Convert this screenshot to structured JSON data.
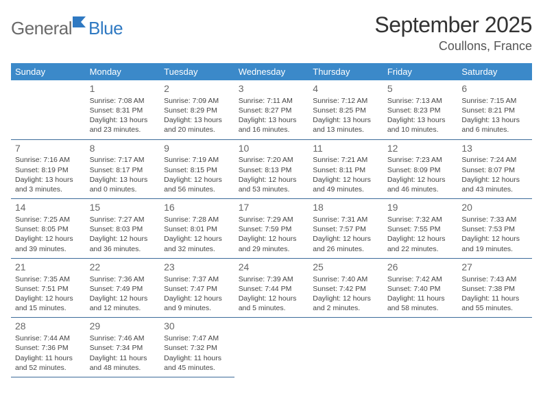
{
  "logo": {
    "general": "General",
    "blue": "Blue"
  },
  "title": "September 2025",
  "location": "Coullons, France",
  "colors": {
    "header_bg": "#3b89c9",
    "header_text": "#ffffff",
    "border": "#3b6a99",
    "logo_gray": "#6a6a6a",
    "logo_blue": "#2f79c2"
  },
  "dayNames": [
    "Sunday",
    "Monday",
    "Tuesday",
    "Wednesday",
    "Thursday",
    "Friday",
    "Saturday"
  ],
  "weeks": [
    [
      null,
      {
        "n": "1",
        "sr": "Sunrise: 7:08 AM",
        "ss": "Sunset: 8:31 PM",
        "dl": "Daylight: 13 hours and 23 minutes."
      },
      {
        "n": "2",
        "sr": "Sunrise: 7:09 AM",
        "ss": "Sunset: 8:29 PM",
        "dl": "Daylight: 13 hours and 20 minutes."
      },
      {
        "n": "3",
        "sr": "Sunrise: 7:11 AM",
        "ss": "Sunset: 8:27 PM",
        "dl": "Daylight: 13 hours and 16 minutes."
      },
      {
        "n": "4",
        "sr": "Sunrise: 7:12 AM",
        "ss": "Sunset: 8:25 PM",
        "dl": "Daylight: 13 hours and 13 minutes."
      },
      {
        "n": "5",
        "sr": "Sunrise: 7:13 AM",
        "ss": "Sunset: 8:23 PM",
        "dl": "Daylight: 13 hours and 10 minutes."
      },
      {
        "n": "6",
        "sr": "Sunrise: 7:15 AM",
        "ss": "Sunset: 8:21 PM",
        "dl": "Daylight: 13 hours and 6 minutes."
      }
    ],
    [
      {
        "n": "7",
        "sr": "Sunrise: 7:16 AM",
        "ss": "Sunset: 8:19 PM",
        "dl": "Daylight: 13 hours and 3 minutes."
      },
      {
        "n": "8",
        "sr": "Sunrise: 7:17 AM",
        "ss": "Sunset: 8:17 PM",
        "dl": "Daylight: 13 hours and 0 minutes."
      },
      {
        "n": "9",
        "sr": "Sunrise: 7:19 AM",
        "ss": "Sunset: 8:15 PM",
        "dl": "Daylight: 12 hours and 56 minutes."
      },
      {
        "n": "10",
        "sr": "Sunrise: 7:20 AM",
        "ss": "Sunset: 8:13 PM",
        "dl": "Daylight: 12 hours and 53 minutes."
      },
      {
        "n": "11",
        "sr": "Sunrise: 7:21 AM",
        "ss": "Sunset: 8:11 PM",
        "dl": "Daylight: 12 hours and 49 minutes."
      },
      {
        "n": "12",
        "sr": "Sunrise: 7:23 AM",
        "ss": "Sunset: 8:09 PM",
        "dl": "Daylight: 12 hours and 46 minutes."
      },
      {
        "n": "13",
        "sr": "Sunrise: 7:24 AM",
        "ss": "Sunset: 8:07 PM",
        "dl": "Daylight: 12 hours and 43 minutes."
      }
    ],
    [
      {
        "n": "14",
        "sr": "Sunrise: 7:25 AM",
        "ss": "Sunset: 8:05 PM",
        "dl": "Daylight: 12 hours and 39 minutes."
      },
      {
        "n": "15",
        "sr": "Sunrise: 7:27 AM",
        "ss": "Sunset: 8:03 PM",
        "dl": "Daylight: 12 hours and 36 minutes."
      },
      {
        "n": "16",
        "sr": "Sunrise: 7:28 AM",
        "ss": "Sunset: 8:01 PM",
        "dl": "Daylight: 12 hours and 32 minutes."
      },
      {
        "n": "17",
        "sr": "Sunrise: 7:29 AM",
        "ss": "Sunset: 7:59 PM",
        "dl": "Daylight: 12 hours and 29 minutes."
      },
      {
        "n": "18",
        "sr": "Sunrise: 7:31 AM",
        "ss": "Sunset: 7:57 PM",
        "dl": "Daylight: 12 hours and 26 minutes."
      },
      {
        "n": "19",
        "sr": "Sunrise: 7:32 AM",
        "ss": "Sunset: 7:55 PM",
        "dl": "Daylight: 12 hours and 22 minutes."
      },
      {
        "n": "20",
        "sr": "Sunrise: 7:33 AM",
        "ss": "Sunset: 7:53 PM",
        "dl": "Daylight: 12 hours and 19 minutes."
      }
    ],
    [
      {
        "n": "21",
        "sr": "Sunrise: 7:35 AM",
        "ss": "Sunset: 7:51 PM",
        "dl": "Daylight: 12 hours and 15 minutes."
      },
      {
        "n": "22",
        "sr": "Sunrise: 7:36 AM",
        "ss": "Sunset: 7:49 PM",
        "dl": "Daylight: 12 hours and 12 minutes."
      },
      {
        "n": "23",
        "sr": "Sunrise: 7:37 AM",
        "ss": "Sunset: 7:47 PM",
        "dl": "Daylight: 12 hours and 9 minutes."
      },
      {
        "n": "24",
        "sr": "Sunrise: 7:39 AM",
        "ss": "Sunset: 7:44 PM",
        "dl": "Daylight: 12 hours and 5 minutes."
      },
      {
        "n": "25",
        "sr": "Sunrise: 7:40 AM",
        "ss": "Sunset: 7:42 PM",
        "dl": "Daylight: 12 hours and 2 minutes."
      },
      {
        "n": "26",
        "sr": "Sunrise: 7:42 AM",
        "ss": "Sunset: 7:40 PM",
        "dl": "Daylight: 11 hours and 58 minutes."
      },
      {
        "n": "27",
        "sr": "Sunrise: 7:43 AM",
        "ss": "Sunset: 7:38 PM",
        "dl": "Daylight: 11 hours and 55 minutes."
      }
    ],
    [
      {
        "n": "28",
        "sr": "Sunrise: 7:44 AM",
        "ss": "Sunset: 7:36 PM",
        "dl": "Daylight: 11 hours and 52 minutes."
      },
      {
        "n": "29",
        "sr": "Sunrise: 7:46 AM",
        "ss": "Sunset: 7:34 PM",
        "dl": "Daylight: 11 hours and 48 minutes."
      },
      {
        "n": "30",
        "sr": "Sunrise: 7:47 AM",
        "ss": "Sunset: 7:32 PM",
        "dl": "Daylight: 11 hours and 45 minutes."
      },
      null,
      null,
      null,
      null
    ]
  ]
}
